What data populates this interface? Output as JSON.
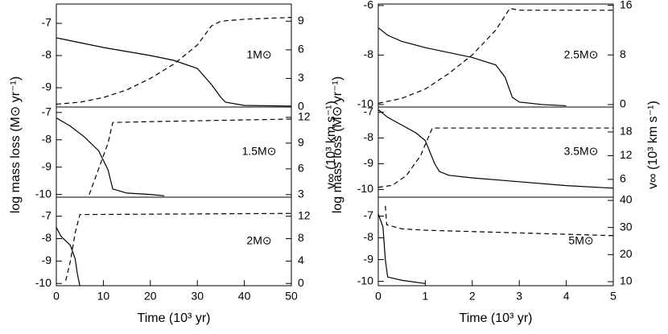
{
  "chart_data": [
    {
      "type": "line",
      "annotation": "1M⊙",
      "xlim": [
        0,
        50
      ],
      "ylim": [
        -9.6,
        -6.4
      ],
      "yticks": [
        -9,
        -8,
        -7
      ],
      "y2lim": [
        0,
        10.8
      ],
      "y2ticks": [
        0,
        3,
        6,
        9
      ],
      "series": [
        {
          "color": "#000000",
          "dash": false,
          "x": [
            0,
            5,
            10,
            20,
            25,
            30,
            33,
            35,
            36,
            40,
            50
          ],
          "values": [
            -7.45,
            -7.6,
            -7.75,
            -8.0,
            -8.15,
            -8.4,
            -8.9,
            -9.3,
            -9.45,
            -9.55,
            -9.57
          ]
        },
        {
          "color": "#000000",
          "dash": true,
          "axis": "y2",
          "x": [
            0,
            5,
            10,
            15,
            20,
            25,
            30,
            33,
            35,
            40,
            50
          ],
          "values": [
            0.3,
            0.5,
            1,
            1.8,
            3,
            4.5,
            6.5,
            8.5,
            9,
            9.2,
            9.4
          ]
        }
      ]
    },
    {
      "type": "line",
      "annotation": "1.5M⊙",
      "ylabel": "log mass loss (M⊙ yr⁻¹)",
      "y2label": "v∞ (10³ km s⁻¹)",
      "xlim": [
        0,
        50
      ],
      "ylim": [
        -10.1,
        -6.8
      ],
      "yticks": [
        -10,
        -9,
        -8,
        -7
      ],
      "y2lim": [
        2.7,
        13.2
      ],
      "y2ticks": [
        3,
        6,
        9,
        12
      ],
      "series": [
        {
          "color": "#000000",
          "dash": false,
          "x": [
            0,
            3,
            6,
            9,
            11,
            12,
            15,
            20,
            23
          ],
          "values": [
            -7.2,
            -7.5,
            -7.9,
            -8.4,
            -9.1,
            -9.8,
            -9.95,
            -10.0,
            -10.05
          ]
        },
        {
          "color": "#000000",
          "dash": true,
          "axis": "y2",
          "x": [
            7,
            9,
            11,
            12,
            20,
            30,
            50
          ],
          "values": [
            3,
            6,
            9,
            11.4,
            11.5,
            11.6,
            11.8
          ]
        }
      ]
    },
    {
      "type": "line",
      "annotation": "2M⊙",
      "xlabel": "Time (10³ yr)",
      "xlim": [
        0,
        50
      ],
      "xticks": [
        0,
        10,
        20,
        30,
        40,
        50
      ],
      "ylim": [
        -10.1,
        -6.15
      ],
      "yticks": [
        -10,
        -9,
        -8,
        -7
      ],
      "y2lim": [
        -0.4,
        15.4
      ],
      "y2ticks": [
        0,
        4,
        8,
        12
      ],
      "series": [
        {
          "color": "#000000",
          "dash": false,
          "x": [
            0,
            1,
            2,
            3,
            4,
            4.5,
            5
          ],
          "values": [
            -7.5,
            -7.9,
            -8.1,
            -8.3,
            -8.9,
            -9.6,
            -10.1
          ]
        },
        {
          "color": "#000000",
          "dash": true,
          "axis": "y2",
          "x": [
            2,
            3,
            4,
            5,
            50
          ],
          "values": [
            0.5,
            4,
            9,
            12.3,
            12.5
          ]
        }
      ]
    },
    {
      "type": "line",
      "annotation": "2.5M⊙",
      "xlim": [
        0,
        5
      ],
      "ylim": [
        -10.1,
        -5.94
      ],
      "yticks": [
        -10,
        -8,
        -6
      ],
      "y2lim": [
        -0.4,
        16.2
      ],
      "y2ticks": [
        0,
        8,
        16
      ],
      "series": [
        {
          "color": "#000000",
          "dash": false,
          "x": [
            0,
            0.2,
            0.5,
            1,
            1.5,
            2,
            2.5,
            2.7,
            2.85,
            3,
            3.5,
            4
          ],
          "values": [
            -6.9,
            -7.2,
            -7.45,
            -7.7,
            -7.9,
            -8.1,
            -8.4,
            -8.9,
            -9.7,
            -9.9,
            -10.0,
            -10.05
          ]
        },
        {
          "color": "#000000",
          "dash": true,
          "axis": "y2",
          "x": [
            0,
            0.5,
            1,
            1.5,
            2,
            2.5,
            2.8,
            3,
            5
          ],
          "values": [
            0.2,
            1,
            2.5,
            5,
            8,
            12,
            15.5,
            15.2,
            15.2
          ]
        }
      ]
    },
    {
      "type": "line",
      "annotation": "3.5M⊙",
      "ylabel": "log mass loss (M⊙ yr⁻¹)",
      "y2label": "v∞ (10³ km s⁻¹)",
      "xlim": [
        0,
        5
      ],
      "ylim": [
        -10.3,
        -6.8
      ],
      "yticks": [
        -10,
        -9,
        -8,
        -7
      ],
      "y2lim": [
        1.5,
        24.3
      ],
      "y2ticks": [
        6,
        12,
        18
      ],
      "series": [
        {
          "color": "#000000",
          "dash": false,
          "x": [
            0,
            0.2,
            0.5,
            0.8,
            1,
            1.2,
            1.3,
            1.5,
            2,
            3,
            4,
            5
          ],
          "values": [
            -6.9,
            -7.2,
            -7.5,
            -7.8,
            -8.1,
            -9.0,
            -9.3,
            -9.45,
            -9.55,
            -9.7,
            -9.85,
            -9.95
          ]
        },
        {
          "color": "#000000",
          "dash": true,
          "axis": "y2",
          "x": [
            0,
            0.3,
            0.6,
            0.9,
            1.15,
            1.3,
            5
          ],
          "values": [
            4,
            4.5,
            7,
            12,
            19,
            19,
            19
          ]
        }
      ]
    },
    {
      "type": "line",
      "annotation": "5M⊙",
      "xlabel": "Time (10³ yr)",
      "xlim": [
        0,
        5
      ],
      "xticks": [
        0,
        1,
        2,
        3,
        4,
        5
      ],
      "ylim": [
        -10.2,
        -6.13
      ],
      "yticks": [
        -10,
        -9,
        -8,
        -7
      ],
      "y2lim": [
        8.5,
        41.2
      ],
      "y2ticks": [
        10,
        20,
        30,
        40
      ],
      "series": [
        {
          "color": "#000000",
          "dash": false,
          "x": [
            0,
            0.1,
            0.15,
            0.2,
            0.5,
            1
          ],
          "values": [
            -6.9,
            -7.5,
            -9,
            -9.8,
            -9.95,
            -10.1
          ]
        },
        {
          "color": "#000000",
          "dash": true,
          "axis": "y2",
          "x": [
            0.15,
            0.18,
            0.5,
            1,
            2,
            3,
            4,
            5
          ],
          "values": [
            38,
            31,
            29.5,
            29,
            28.5,
            28,
            27.5,
            27
          ]
        }
      ]
    }
  ]
}
